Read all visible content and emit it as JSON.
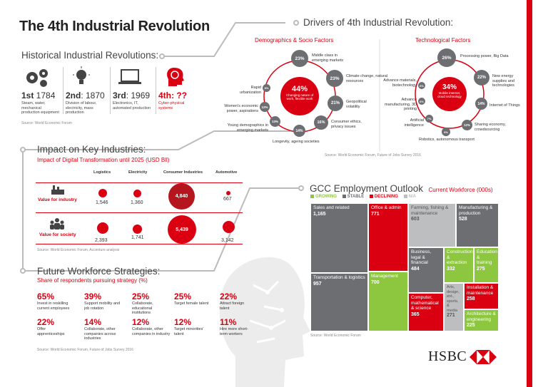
{
  "title": "The 4th Industrial Revolution",
  "historical": {
    "title": "Historical Industrial Revolutions:",
    "items": [
      {
        "num": "1st",
        "sup": ":",
        "year": " 1784",
        "desc": "Steam, water, mechanical production equipment"
      },
      {
        "num": "2nd",
        "year": ": 1870",
        "desc": "Division of labour, electricity, mass production"
      },
      {
        "num": "3rd",
        "year": ": 1969",
        "desc": "Electronics, IT, automated production"
      },
      {
        "num": "4th",
        "year": ": ??",
        "desc": "Cyber-physical systems"
      }
    ],
    "source": "Source: World Economic Forum"
  },
  "drivers": {
    "title": "Drivers of 4th Industrial Revolution:",
    "demo_title": "Demographics & Socio Factors",
    "tech_title": "Technological Factors",
    "demo_center_value": "44%",
    "demo_center_label": "Changing nature of work, flexible work",
    "tech_center_value": "34%",
    "tech_center_label": "Mobile internet, cloud technology",
    "demo_items": [
      {
        "value": "23%",
        "label": "Middle class in emerging markets"
      },
      {
        "value": "23%",
        "label": "Climate change, natural resources"
      },
      {
        "value": "21%",
        "label": "Geopolitical volatility"
      },
      {
        "value": "16%",
        "label": "Consumer ethics, privacy issues"
      },
      {
        "value": "14%",
        "label": "Longevity, ageing societies"
      },
      {
        "value": "13%",
        "label": "Young demographics in emerging markets"
      },
      {
        "value": "12%",
        "label": "Women's economic power, aspirations"
      },
      {
        "value": "8%",
        "label": "Rapid urbanization"
      }
    ],
    "tech_items": [
      {
        "value": "26%",
        "label": "Processing power, Big Data"
      },
      {
        "value": "22%",
        "label": "New energy supplies and technologies"
      },
      {
        "value": "14%",
        "label": "Internet of Things"
      },
      {
        "value": "12%",
        "label": "Sharing economy, crowdsourcing"
      },
      {
        "value": "9%",
        "label": "Robotics, autonomous transport"
      },
      {
        "value": "7%",
        "label": "Artificial intelligence"
      },
      {
        "value": "6%",
        "label": "Advance manufacturing, 3D printing"
      },
      {
        "value": "6%",
        "label": "Advance materials, biotechnology"
      }
    ],
    "source": "Source: World Economic Forum, Future of Jobs Survey 2016"
  },
  "impact": {
    "title": "Impact on Key Industries:",
    "subtitle": "Impact of Digital Transformation until 2025 (USD Bll)",
    "columns": [
      "Logistics",
      "Electricity",
      "Consumer Industries",
      "Automotive"
    ],
    "rows": [
      {
        "label": "Value for industry",
        "values": [
          "1,546",
          "1,360",
          "4,840",
          "667"
        ]
      },
      {
        "label": "Value for society",
        "values": [
          "2,393",
          "1,741",
          "5,439",
          "3,142"
        ]
      }
    ],
    "source": "Source: World Economic Forum, Accenture analysis"
  },
  "strategies": {
    "title": "Future Workforce Strategies:",
    "subtitle": "Share of respondents pursuing strategy (%)",
    "items": [
      {
        "pct": "65%",
        "desc": "Invest in reskilling current employees"
      },
      {
        "pct": "39%",
        "desc": "Support mobility and job rotation"
      },
      {
        "pct": "25%",
        "desc": "Collaborate, educational institutions"
      },
      {
        "pct": "25%",
        "desc": "Target female talent"
      },
      {
        "pct": "22%",
        "desc": "Attract foreign talent"
      },
      {
        "pct": "22%",
        "desc": "Offer apprenticeships"
      },
      {
        "pct": "14%",
        "desc": "Collaborate, other companies across industries"
      },
      {
        "pct": "12%",
        "desc": "Collaborate, other companies in industry"
      },
      {
        "pct": "12%",
        "desc": "Target minorities' talent"
      },
      {
        "pct": "11%",
        "desc": "Hire more short-term workers"
      }
    ],
    "source": "Source: World Economic Forum, Future of Jobs Survey 2016"
  },
  "gcc": {
    "title": "GCC Employment Outlook",
    "subtitle": "Current Workforce (000s)",
    "legend": [
      {
        "label": "GROWING",
        "color": "#8dc63f"
      },
      {
        "label": "STABLE",
        "color": "#6d6e71"
      },
      {
        "label": "DECLINING",
        "color": "#db0011"
      },
      {
        "label": "N/A",
        "color": "#bcbec0"
      }
    ],
    "cells": [
      {
        "label": "Sales and related",
        "value": "1,165"
      },
      {
        "label": "Office & admin",
        "value": "771"
      },
      {
        "label": "Farming, fishing & maintenance",
        "value": "603"
      },
      {
        "label": "Manufacturing & production",
        "value": "528"
      },
      {
        "label": "Transportation & logistics",
        "value": "957"
      },
      {
        "label": "Management",
        "value": "700"
      },
      {
        "label": "Business, legal & financial",
        "value": "484"
      },
      {
        "label": "Construction & extraction",
        "value": "332"
      },
      {
        "label": "Education & training",
        "value": "275"
      },
      {
        "label": "Computer, mathematical & science",
        "value": "365"
      },
      {
        "label": "Arts, design, ent., sports, & media",
        "value": "271"
      },
      {
        "label": "Installation & maintenance",
        "value": "258"
      },
      {
        "label": "Architecture & engineering",
        "value": "225"
      }
    ],
    "source": "Source: World Economic Forum"
  },
  "brand": {
    "name": "HSBC",
    "color": "#db0011"
  }
}
